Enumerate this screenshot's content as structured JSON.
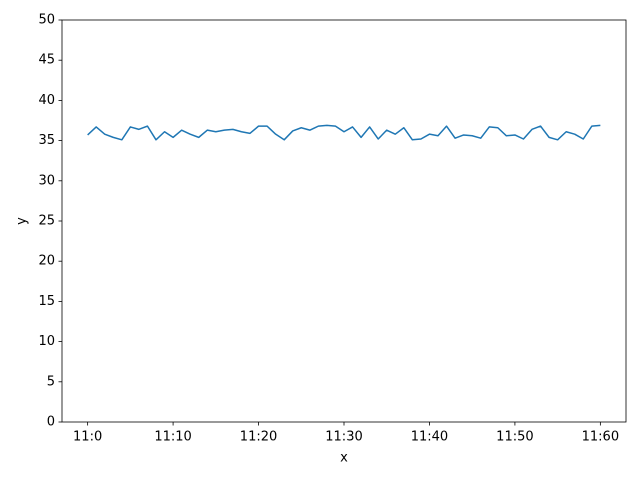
{
  "chart_data": {
    "type": "line",
    "x": [
      0,
      1,
      2,
      3,
      4,
      5,
      6,
      7,
      8,
      9,
      10,
      11,
      12,
      13,
      14,
      15,
      16,
      17,
      18,
      19,
      20,
      21,
      22,
      23,
      24,
      25,
      26,
      27,
      28,
      29,
      30,
      31,
      32,
      33,
      34,
      35,
      36,
      37,
      38,
      39,
      40,
      41,
      42,
      43,
      44,
      45,
      46,
      47,
      48,
      49,
      50,
      51,
      52,
      53,
      54,
      55,
      56,
      57,
      58,
      59,
      60
    ],
    "values": [
      35.7,
      36.7,
      35.8,
      35.4,
      35.1,
      36.7,
      36.4,
      36.8,
      35.1,
      36.1,
      35.4,
      36.3,
      35.8,
      35.4,
      36.3,
      36.1,
      36.3,
      36.4,
      36.1,
      35.9,
      36.8,
      36.8,
      35.8,
      35.1,
      36.2,
      36.6,
      36.3,
      36.8,
      36.9,
      36.8,
      36.1,
      36.7,
      35.4,
      36.7,
      35.2,
      36.3,
      35.8,
      36.6,
      35.1,
      35.2,
      35.8,
      35.6,
      36.8,
      35.3,
      35.7,
      35.6,
      35.3,
      36.7,
      36.6,
      35.6,
      35.7,
      35.2,
      36.4,
      36.8,
      35.4,
      35.1,
      36.1,
      35.8,
      35.2,
      36.8,
      36.9
    ],
    "color": "#1f77b4",
    "xlabel": "x",
    "ylabel": "y",
    "xlim": [
      -3,
      63
    ],
    "xticks": [
      {
        "value": 0,
        "label": "11:0"
      },
      {
        "value": 10,
        "label": "11:10"
      },
      {
        "value": 20,
        "label": "11:20"
      },
      {
        "value": 30,
        "label": "11:30"
      },
      {
        "value": 40,
        "label": "11:40"
      },
      {
        "value": 50,
        "label": "11:50"
      },
      {
        "value": 60,
        "label": "11:60"
      }
    ],
    "ylim": [
      0,
      50
    ],
    "yticks": [
      0,
      5,
      10,
      15,
      20,
      25,
      30,
      35,
      40,
      45,
      50
    ]
  }
}
